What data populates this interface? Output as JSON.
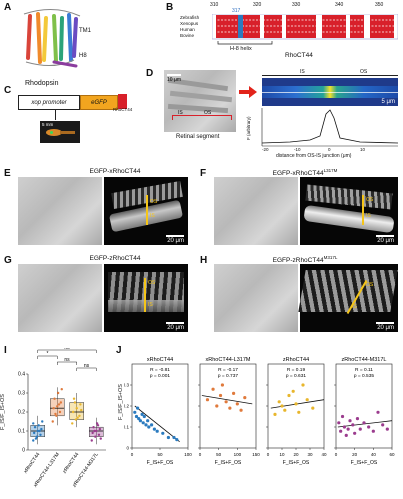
{
  "panels": {
    "A": {
      "letter": "A",
      "tm1": "TM1",
      "h8": "H8",
      "caption": "Rhodopsin"
    },
    "B": {
      "letter": "B",
      "pos": [
        "310",
        "320",
        "330",
        "340",
        "350"
      ],
      "marker": "317",
      "species": [
        "Zebrafish",
        "Xenopus",
        "Human",
        "Bovine"
      ],
      "helix": "H-8 helix",
      "caption": "RhoCT44"
    },
    "C": {
      "letter": "C",
      "promoter": "xop promoter",
      "gene": "eGFP",
      "tag": "RhoCT44",
      "bar": "5 mm"
    },
    "D": {
      "letter": "D",
      "bar1": "10 μm",
      "is": "IS",
      "os": "OS",
      "sub": "Retinal segment",
      "bar2": "5 μm",
      "ylabel": "F (arbitrary)",
      "xlabel": "distance from OS-IS junction (μm)",
      "xticks": [
        "-20",
        "-10",
        "0",
        "10"
      ]
    },
    "E": {
      "letter": "E",
      "title": "EGFP-xRhoCT44",
      "os": "OS",
      "is": "IS",
      "bar": "20 μm"
    },
    "F": {
      "letter": "F",
      "title": "EGFP-xRhoCT44",
      "sup": "L317M",
      "os": "OS",
      "is": "IS",
      "bar": "20 μm"
    },
    "G": {
      "letter": "G",
      "title": "EGFP-zRhoCT44",
      "os": "OS",
      "is": "IS",
      "bar": "20 μm"
    },
    "H": {
      "letter": "H",
      "title": "EGFP-zRhoCT44",
      "sup": "M317L",
      "os": "OS",
      "is": "IS",
      "bar": "20 μm"
    },
    "I": {
      "letter": "I",
      "ylabel": "F_IS/F_IS+OS",
      "sig": [
        "ns",
        "*",
        "ns",
        "ns"
      ],
      "cats": [
        "xRhoCT44",
        "xRhoCT44-L317M",
        "zRhoCT44",
        "zRhoCT44-M317L"
      ]
    },
    "J": {
      "letter": "J",
      "ylabel": "F_IS/F_IS+OS",
      "xlabel": "F_IS+F_OS"
    }
  },
  "chart_data": [
    {
      "type": "box",
      "panel": "I",
      "categories": [
        "xRhoCT44",
        "xRhoCT44-L317M",
        "zRhoCT44",
        "zRhoCT44-M317L"
      ],
      "ylim": [
        0,
        0.4
      ],
      "yticks": [
        "0",
        "0.1",
        "0.2",
        "0.3",
        "0.4"
      ],
      "colors": [
        "#2b7bbf",
        "#e07a3c",
        "#e8b62c",
        "#9b3c8e"
      ],
      "boxes": [
        {
          "q1": 0.07,
          "median": 0.1,
          "q3": 0.13,
          "min": 0.03,
          "max": 0.18,
          "points": [
            0.05,
            0.07,
            0.08,
            0.09,
            0.1,
            0.11,
            0.12,
            0.13,
            0.15,
            0.06,
            0.1,
            0.14
          ]
        },
        {
          "q1": 0.18,
          "median": 0.22,
          "q3": 0.27,
          "min": 0.13,
          "max": 0.33,
          "points": [
            0.15,
            0.18,
            0.2,
            0.22,
            0.23,
            0.25,
            0.27,
            0.3,
            0.32,
            0.19,
            0.24
          ]
        },
        {
          "q1": 0.16,
          "median": 0.2,
          "q3": 0.25,
          "min": 0.12,
          "max": 0.3,
          "points": [
            0.14,
            0.16,
            0.18,
            0.2,
            0.22,
            0.24,
            0.27,
            0.17,
            0.21,
            0.25
          ]
        },
        {
          "q1": 0.07,
          "median": 0.1,
          "q3": 0.12,
          "min": 0.03,
          "max": 0.17,
          "points": [
            0.05,
            0.07,
            0.08,
            0.09,
            0.1,
            0.11,
            0.12,
            0.14,
            0.06,
            0.1,
            0.13
          ]
        }
      ]
    },
    {
      "type": "scatter",
      "panel": "J1",
      "title": "xRhoCT44",
      "color": "#2b7bbf",
      "stats": [
        "R = -0.81",
        "p = 0.001"
      ],
      "xlim": [
        0,
        100
      ],
      "xticks": [
        "0",
        "50",
        "100"
      ],
      "ylim": [
        0,
        0.4
      ],
      "yticks": [
        "0",
        "0.1",
        "0.2",
        "0.3"
      ],
      "fit": [
        [
          5,
          0.2
        ],
        [
          85,
          0.03
        ]
      ],
      "points": [
        [
          5,
          0.17
        ],
        [
          8,
          0.15
        ],
        [
          10,
          0.19
        ],
        [
          12,
          0.14
        ],
        [
          15,
          0.13
        ],
        [
          18,
          0.16
        ],
        [
          20,
          0.12
        ],
        [
          22,
          0.15
        ],
        [
          25,
          0.11
        ],
        [
          28,
          0.13
        ],
        [
          30,
          0.1
        ],
        [
          35,
          0.11
        ],
        [
          40,
          0.09
        ],
        [
          45,
          0.08
        ],
        [
          55,
          0.07
        ],
        [
          65,
          0.05
        ],
        [
          75,
          0.05
        ],
        [
          80,
          0.04
        ]
      ]
    },
    {
      "type": "scatter",
      "panel": "J2",
      "title": "xRhoCT44-L317M",
      "color": "#e07a3c",
      "stats": [
        "R = -0.17",
        "p = 0.737"
      ],
      "xlim": [
        0,
        150
      ],
      "xticks": [
        "0",
        "50",
        "100",
        "150"
      ],
      "ylim": [
        0,
        0.4
      ],
      "yticks": [
        "0",
        "0.1",
        "0.2",
        "0.3"
      ],
      "fit": [
        [
          5,
          0.25
        ],
        [
          140,
          0.21
        ]
      ],
      "points": [
        [
          20,
          0.23
        ],
        [
          35,
          0.28
        ],
        [
          45,
          0.2
        ],
        [
          55,
          0.25
        ],
        [
          60,
          0.3
        ],
        [
          70,
          0.22
        ],
        [
          80,
          0.19
        ],
        [
          90,
          0.26
        ],
        [
          100,
          0.21
        ],
        [
          110,
          0.18
        ],
        [
          120,
          0.24
        ]
      ]
    },
    {
      "type": "scatter",
      "panel": "J3",
      "title": "zRhoCT44",
      "color": "#e8b62c",
      "stats": [
        "R = 0.19",
        "p = 0.631"
      ],
      "xlim": [
        0,
        40
      ],
      "xticks": [
        "0",
        "10",
        "20",
        "30",
        "40"
      ],
      "ylim": [
        0,
        0.4
      ],
      "yticks": [
        "0",
        "0.1",
        "0.2",
        "0.3"
      ],
      "fit": [
        [
          2,
          0.19
        ],
        [
          40,
          0.23
        ]
      ],
      "points": [
        [
          5,
          0.16
        ],
        [
          8,
          0.22
        ],
        [
          10,
          0.2
        ],
        [
          12,
          0.18
        ],
        [
          15,
          0.25
        ],
        [
          18,
          0.27
        ],
        [
          20,
          0.21
        ],
        [
          22,
          0.17
        ],
        [
          25,
          0.3
        ],
        [
          28,
          0.23
        ],
        [
          32,
          0.19
        ]
      ]
    },
    {
      "type": "scatter",
      "panel": "J4",
      "title": "zRhoCT44-M317L",
      "color": "#9b3c8e",
      "stats": [
        "R = 0.11",
        "p = 0.535"
      ],
      "xlim": [
        0,
        60
      ],
      "xticks": [
        "0",
        "20",
        "40",
        "60"
      ],
      "ylim": [
        0,
        0.4
      ],
      "yticks": [
        "0",
        "0.1",
        "0.2",
        "0.3"
      ],
      "fit": [
        [
          2,
          0.1
        ],
        [
          60,
          0.13
        ]
      ],
      "points": [
        [
          3,
          0.12
        ],
        [
          5,
          0.08
        ],
        [
          7,
          0.15
        ],
        [
          9,
          0.1
        ],
        [
          11,
          0.06
        ],
        [
          13,
          0.09
        ],
        [
          15,
          0.13
        ],
        [
          18,
          0.11
        ],
        [
          20,
          0.07
        ],
        [
          23,
          0.14
        ],
        [
          26,
          0.09
        ],
        [
          30,
          0.12
        ],
        [
          35,
          0.1
        ],
        [
          40,
          0.08
        ],
        [
          45,
          0.17
        ],
        [
          50,
          0.11
        ],
        [
          55,
          0.09
        ]
      ]
    }
  ]
}
